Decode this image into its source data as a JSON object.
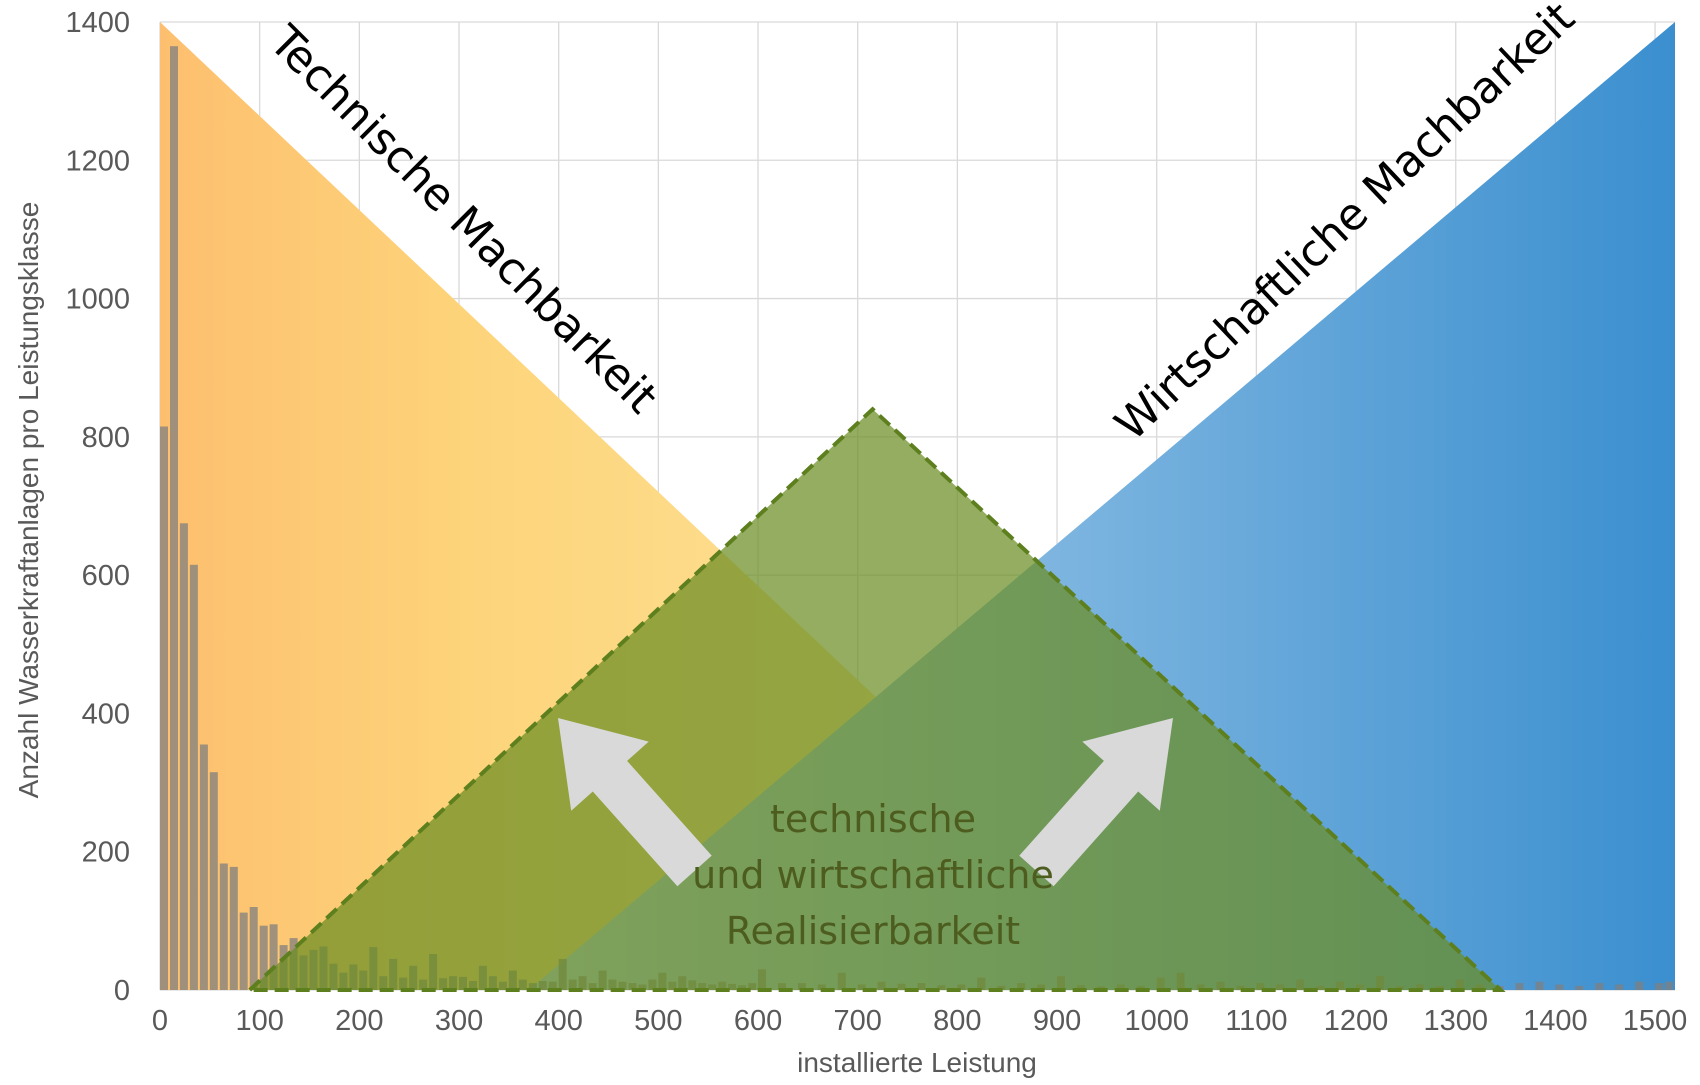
{
  "chart_data": {
    "type": "bar",
    "xlabel": "installierte Leistung",
    "ylabel": "Anzahl Wasserkraftanlagen pro Leistungsklasse",
    "xlim": [
      0,
      1520
    ],
    "ylim": [
      0,
      1400
    ],
    "x_ticks": [
      "0",
      "100",
      "200",
      "300",
      "400",
      "500",
      "600",
      "700",
      "800",
      "900",
      "1000",
      "1100",
      "1200",
      "1300",
      "1400",
      "1500"
    ],
    "y_ticks": [
      "0",
      "200",
      "400",
      "600",
      "800",
      "1000",
      "1200",
      "1400"
    ],
    "grid": true,
    "bar_width": 8,
    "x": [
      0,
      10,
      20,
      30,
      40,
      50,
      60,
      70,
      80,
      90,
      100,
      110,
      120,
      130,
      140,
      150,
      160,
      170,
      180,
      190,
      200,
      210,
      220,
      230,
      240,
      250,
      260,
      270,
      280,
      290,
      300,
      310,
      320,
      330,
      340,
      350,
      360,
      370,
      380,
      390,
      400,
      410,
      420,
      430,
      440,
      450,
      460,
      470,
      480,
      490,
      500,
      510,
      520,
      530,
      540,
      550,
      560,
      570,
      580,
      590,
      600,
      620,
      640,
      660,
      680,
      700,
      720,
      740,
      760,
      780,
      800,
      820,
      840,
      860,
      880,
      900,
      920,
      940,
      960,
      980,
      1000,
      1020,
      1040,
      1060,
      1080,
      1100,
      1120,
      1140,
      1160,
      1180,
      1200,
      1220,
      1240,
      1260,
      1280,
      1300,
      1320,
      1340,
      1360,
      1380,
      1400,
      1420,
      1440,
      1460,
      1480,
      1500,
      1510
    ],
    "values": [
      815,
      1365,
      675,
      615,
      355,
      315,
      183,
      178,
      112,
      120,
      93,
      95,
      65,
      75,
      50,
      58,
      63,
      38,
      25,
      37,
      28,
      62,
      20,
      45,
      18,
      35,
      15,
      52,
      17,
      20,
      19,
      13,
      35,
      20,
      12,
      28,
      15,
      10,
      13,
      12,
      45,
      15,
      20,
      10,
      28,
      15,
      12,
      10,
      8,
      15,
      25,
      12,
      20,
      14,
      10,
      8,
      12,
      9,
      7,
      10,
      30,
      10,
      10,
      8,
      25,
      8,
      12,
      9,
      10,
      7,
      8,
      18,
      6,
      10,
      8,
      20,
      7,
      5,
      8,
      6,
      18,
      25,
      8,
      12,
      6,
      10,
      8,
      15,
      6,
      12,
      8,
      20,
      6,
      8,
      6,
      15,
      8,
      6,
      10,
      12,
      8,
      6,
      10,
      8,
      12,
      10,
      12
    ],
    "series": [
      {
        "name": "Technische Machbarkeit",
        "color_start": "#fdbf6f",
        "color_end": "#fee9a8"
      },
      {
        "name": "Wirtschaftliche Machbarkeit",
        "color_start": "#a9cde9",
        "color_end": "#3b8fcf"
      }
    ],
    "overlay_label": [
      "technische",
      "und wirtschaftliche",
      "Realisierbarkeit"
    ],
    "colors": {
      "bars": "#7f7f7f",
      "grid": "#d9d9d9",
      "green_fill": "#6b8e23",
      "green_edge": "#5d7f1e",
      "arrow": "#d9d9d9"
    }
  }
}
